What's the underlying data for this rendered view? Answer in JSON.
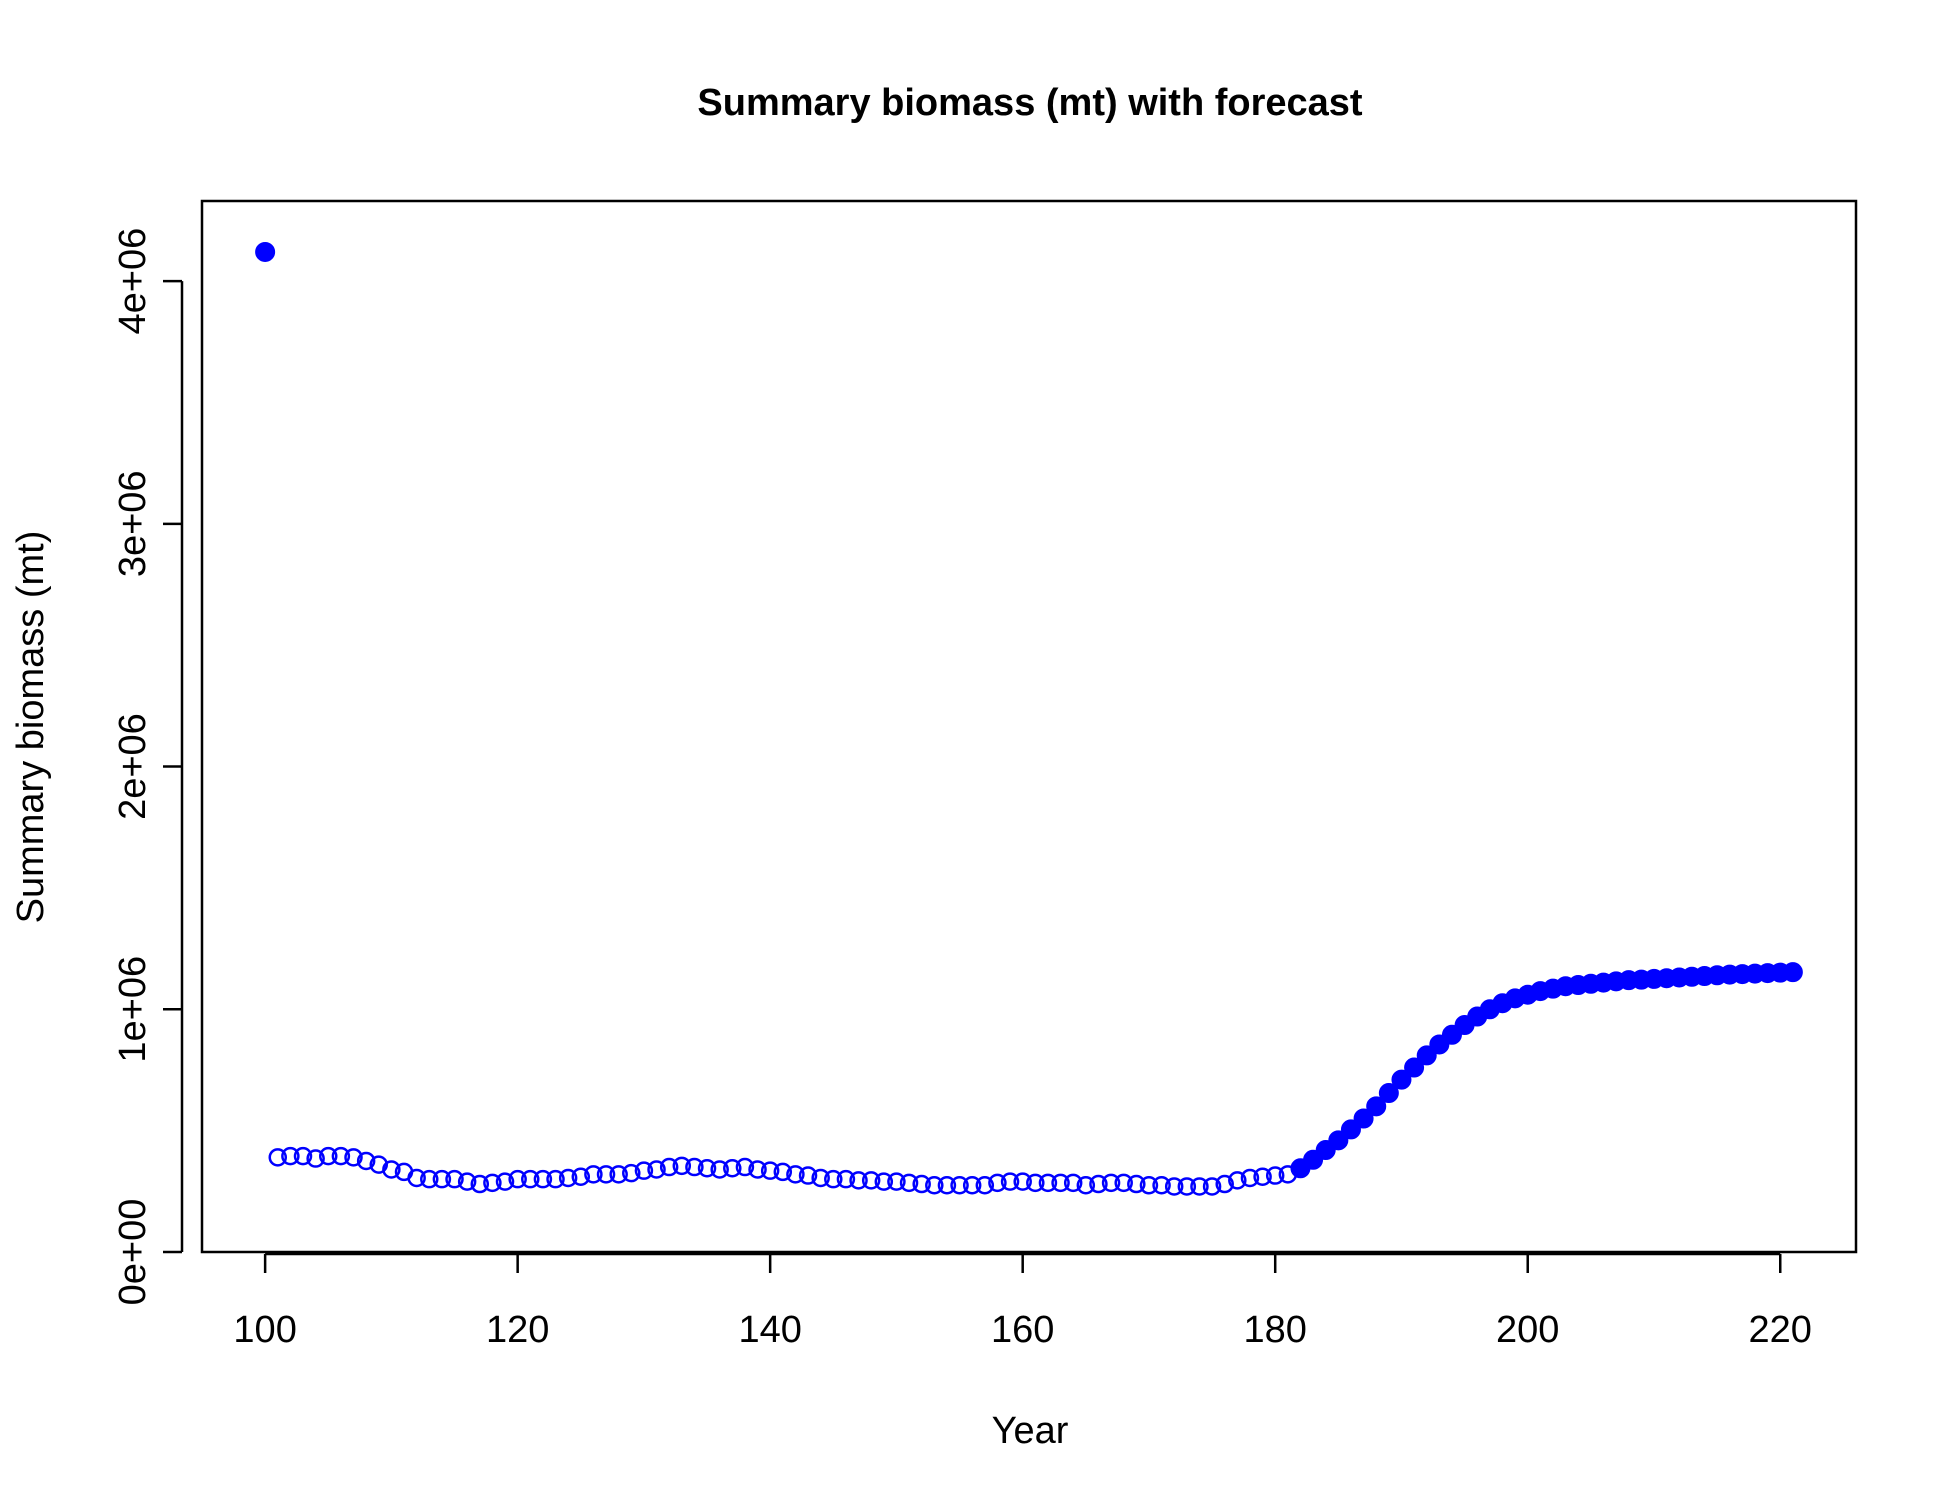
{
  "chart_data": {
    "type": "scatter",
    "title": "Summary biomass (mt) with forecast",
    "xlabel": "Year",
    "ylabel": "Summary biomass (mt)",
    "xlim": [
      95,
      226
    ],
    "ylim": [
      0,
      4330000
    ],
    "x_ticks": [
      100,
      120,
      140,
      160,
      180,
      200,
      220
    ],
    "x_tick_labels": [
      "100",
      "120",
      "140",
      "160",
      "180",
      "200",
      "220"
    ],
    "y_ticks": [
      0,
      1000000,
      2000000,
      3000000,
      4000000
    ],
    "y_tick_labels": [
      "0e+00",
      "1e+06",
      "2e+06",
      "3e+06",
      "4e+06"
    ],
    "marker_color": "#0000ff",
    "grid": false,
    "legend": "none",
    "series": [
      {
        "marker": "filled",
        "x": [
          100
        ],
        "y": [
          4120000
        ]
      },
      {
        "marker": "open",
        "x": [
          101,
          102,
          103,
          104,
          105,
          106,
          107,
          108,
          109,
          110,
          111,
          112,
          113,
          114,
          115,
          116,
          117,
          118,
          119,
          120,
          121,
          122,
          123,
          124,
          125,
          126,
          127,
          128,
          129,
          130,
          131,
          132,
          133,
          134,
          135,
          136,
          137,
          138,
          139,
          140,
          141,
          142,
          143,
          144,
          145,
          146,
          147,
          148,
          149,
          150,
          151,
          152,
          153,
          154,
          155,
          156,
          157,
          158,
          159,
          160,
          161,
          162,
          163,
          164,
          165,
          166,
          167,
          168,
          169,
          170,
          171,
          172,
          173,
          174,
          175,
          176,
          177,
          178,
          179,
          180,
          181
        ],
        "y": [
          390000,
          395000,
          395000,
          385000,
          395000,
          395000,
          390000,
          375000,
          360000,
          340000,
          330000,
          305000,
          300000,
          300000,
          300000,
          290000,
          280000,
          285000,
          290000,
          300000,
          300000,
          300000,
          300000,
          305000,
          310000,
          320000,
          320000,
          320000,
          325000,
          335000,
          340000,
          350000,
          355000,
          350000,
          345000,
          340000,
          345000,
          350000,
          340000,
          335000,
          330000,
          320000,
          315000,
          305000,
          300000,
          300000,
          295000,
          295000,
          290000,
          290000,
          285000,
          280000,
          275000,
          275000,
          275000,
          275000,
          275000,
          285000,
          290000,
          290000,
          285000,
          285000,
          285000,
          285000,
          275000,
          280000,
          285000,
          285000,
          280000,
          275000,
          275000,
          270000,
          270000,
          270000,
          270000,
          280000,
          295000,
          305000,
          310000,
          315000,
          320000
        ]
      },
      {
        "marker": "filled",
        "x": [
          182,
          183,
          184,
          185,
          186,
          187,
          188,
          189,
          190,
          191,
          192,
          193,
          194,
          195,
          196,
          197,
          198,
          199,
          200,
          201,
          202,
          203,
          204,
          205,
          206,
          207,
          208,
          209,
          210,
          211,
          212,
          213,
          214,
          215,
          216,
          217,
          218,
          219,
          220,
          221
        ],
        "y": [
          345000,
          380000,
          420000,
          460000,
          505000,
          550000,
          600000,
          655000,
          710000,
          760000,
          810000,
          855000,
          895000,
          935000,
          970000,
          1000000,
          1025000,
          1045000,
          1060000,
          1075000,
          1085000,
          1095000,
          1100000,
          1105000,
          1110000,
          1115000,
          1120000,
          1122000,
          1125000,
          1128000,
          1131000,
          1134000,
          1137000,
          1140000,
          1143000,
          1145000,
          1147000,
          1149000,
          1151000,
          1153000
        ]
      }
    ]
  }
}
